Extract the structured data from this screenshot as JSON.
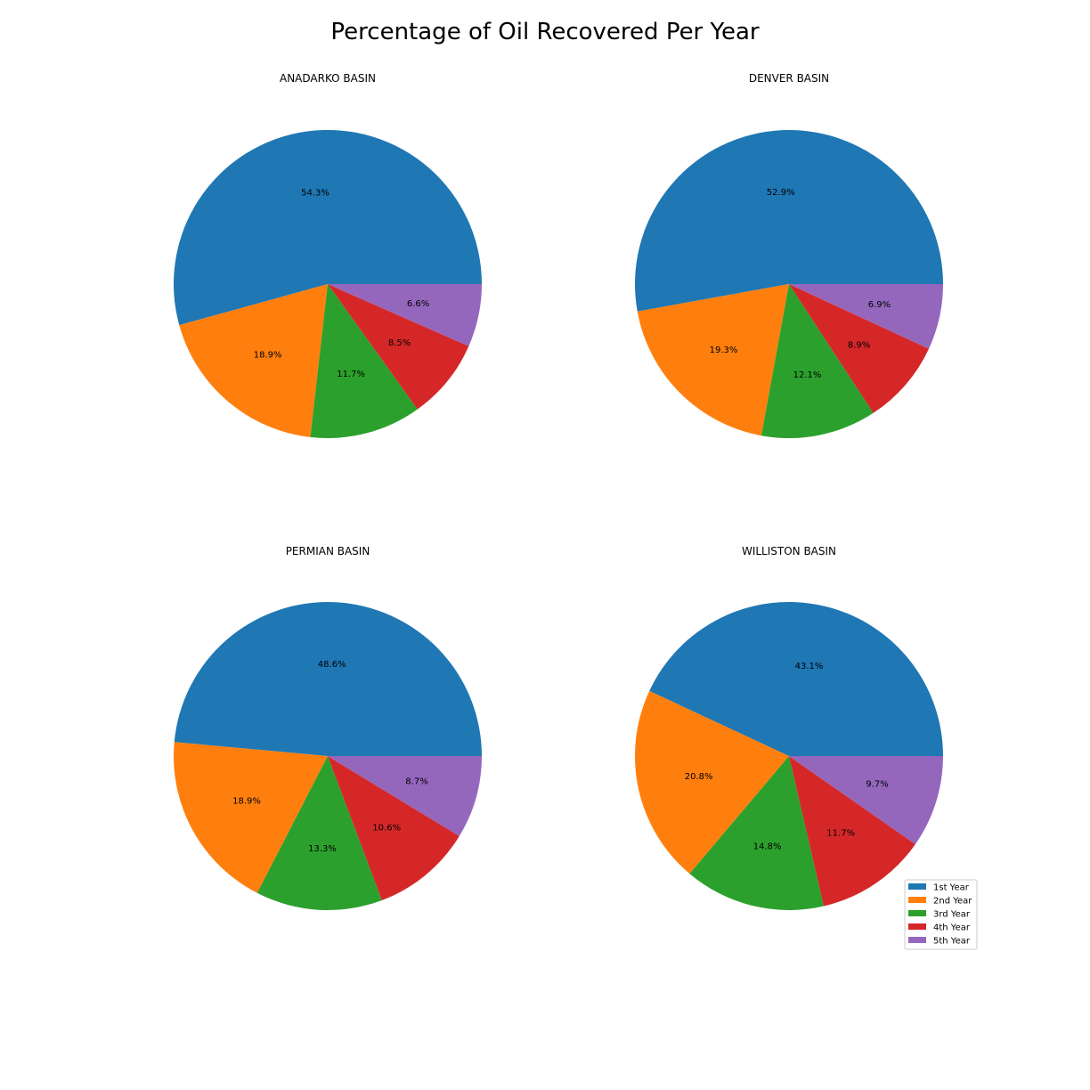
{
  "figure": {
    "title": "Percentage of Oil Recovered Per Year"
  },
  "legend": {
    "placement": "lower-right",
    "entries": [
      "1st Year",
      "2nd Year",
      "3rd Year",
      "4th Year",
      "5th Year"
    ]
  },
  "colors": [
    "#1f77b4",
    "#ff7f0e",
    "#2ca02c",
    "#d62728",
    "#9467bd"
  ],
  "chart_data": [
    {
      "type": "pie",
      "title": "ANADARKO BASIN",
      "categories": [
        "1st Year",
        "2nd Year",
        "3rd Year",
        "4th Year",
        "5th Year"
      ],
      "values": [
        54.3,
        18.9,
        11.7,
        8.5,
        6.6
      ],
      "labels": [
        "54.3%",
        "18.9%",
        "11.7%",
        "8.5%",
        "6.6%"
      ],
      "start_angle": 0,
      "direction": "counterclockwise"
    },
    {
      "type": "pie",
      "title": "DENVER BASIN",
      "categories": [
        "1st Year",
        "2nd Year",
        "3rd Year",
        "4th Year",
        "5th Year"
      ],
      "values": [
        52.9,
        19.3,
        12.1,
        8.9,
        6.9
      ],
      "labels": [
        "52.9%",
        "19.3%",
        "12.1%",
        "8.9%",
        "6.9%"
      ],
      "start_angle": 0,
      "direction": "counterclockwise"
    },
    {
      "type": "pie",
      "title": "PERMIAN BASIN",
      "categories": [
        "1st Year",
        "2nd Year",
        "3rd Year",
        "4th Year",
        "5th Year"
      ],
      "values": [
        48.6,
        18.9,
        13.3,
        10.6,
        8.7
      ],
      "labels": [
        "48.6%",
        "18.9%",
        "13.3%",
        "10.6%",
        "8.7%"
      ],
      "start_angle": 0,
      "direction": "counterclockwise"
    },
    {
      "type": "pie",
      "title": "WILLISTON BASIN",
      "categories": [
        "1st Year",
        "2nd Year",
        "3rd Year",
        "4th Year",
        "5th Year"
      ],
      "values": [
        43.1,
        20.8,
        14.8,
        11.7,
        9.7
      ],
      "labels": [
        "43.1%",
        "20.8%",
        "14.8%",
        "11.7%",
        "9.7%"
      ],
      "start_angle": 0,
      "direction": "counterclockwise"
    }
  ]
}
